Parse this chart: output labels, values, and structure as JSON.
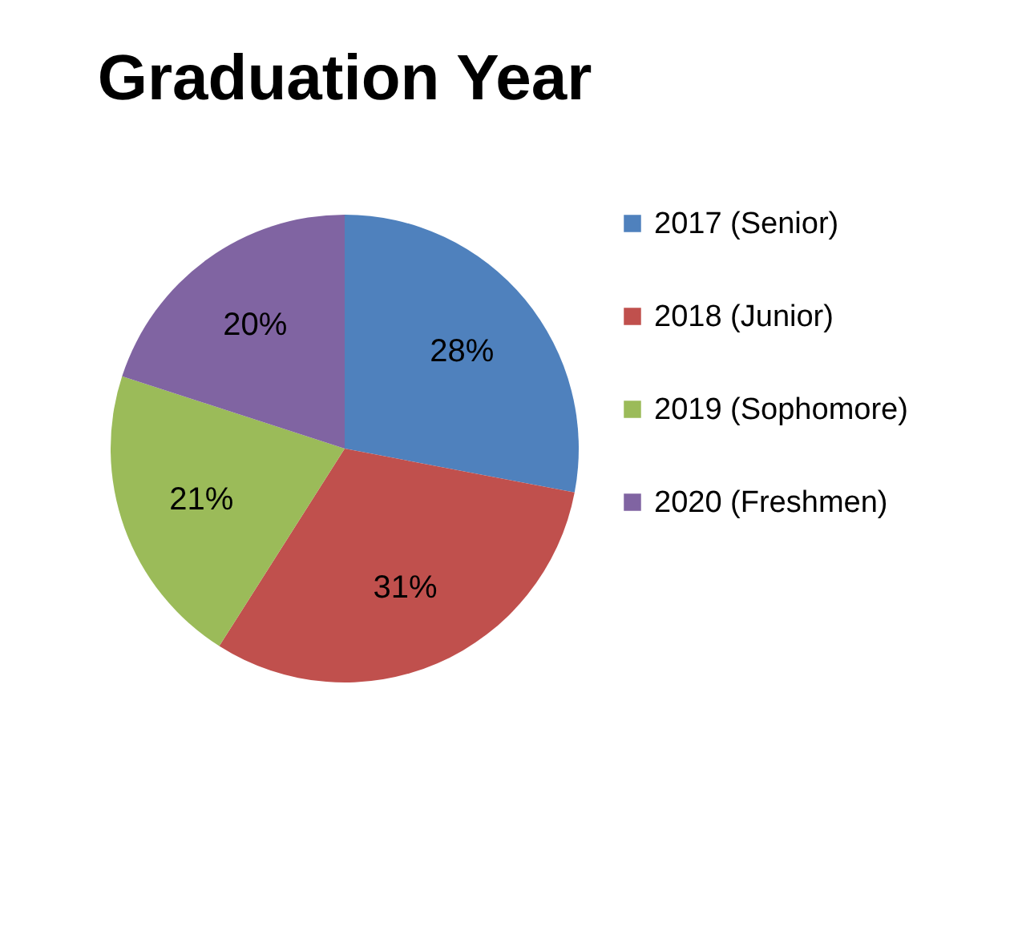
{
  "chart_data": {
    "type": "pie",
    "title": "Graduation Year",
    "categories": [
      "2017 (Senior)",
      "2018 (Junior)",
      "2019 (Sophomore)",
      "2020 (Freshmen)"
    ],
    "values": [
      28,
      31,
      21,
      20
    ],
    "colors": [
      "#4f81bd",
      "#c0504d",
      "#9bbb59",
      "#8064a2"
    ],
    "value_labels": [
      "28%",
      "31%",
      "21%",
      "20%"
    ],
    "legend": "right"
  }
}
